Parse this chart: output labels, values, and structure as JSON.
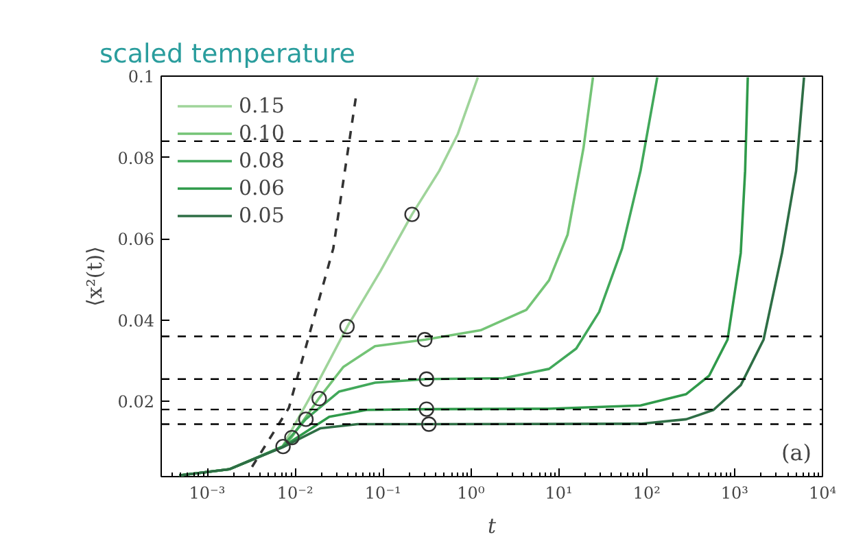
{
  "chart_data": {
    "type": "line",
    "title": "scaled temperature",
    "xlabel": "t",
    "ylabel": "⟨x²(t)⟩",
    "log": "x",
    "legend": "top left",
    "grid": false,
    "line_style": "solid",
    "xlim": [
      0.0003,
      10000
    ],
    "ylim": [
      0.0015,
      0.1
    ],
    "xticks": [
      {
        "value": 0.001,
        "label": "10⁻³"
      },
      {
        "value": 0.01,
        "label": "10⁻²"
      },
      {
        "value": 0.1,
        "label": "10⁻¹"
      },
      {
        "value": 1,
        "label": "10⁰"
      },
      {
        "value": 10,
        "label": "10¹"
      },
      {
        "value": 100,
        "label": "10²"
      },
      {
        "value": 1000,
        "label": "10³"
      },
      {
        "value": 10000,
        "label": "10⁴"
      }
    ],
    "yticks": [
      0.02,
      0.04,
      0.06,
      0.08,
      0.1
    ],
    "series": [
      {
        "name": "0.15",
        "color": "#9fd49a",
        "x": [
          0.00048,
          0.00178,
          0.00363,
          0.0072,
          0.0155,
          0.0398,
          0.0933,
          0.214,
          0.437,
          0.708,
          1.2
        ],
        "values": [
          0.0018,
          0.0033,
          0.0061,
          0.0089,
          0.0218,
          0.0386,
          0.052,
          0.066,
          0.0767,
          0.0857,
          0.0997
        ]
      },
      {
        "name": "0.10",
        "color": "#74c476",
        "x": [
          0.00048,
          0.00178,
          0.00363,
          0.0072,
          0.0091,
          0.0186,
          0.0355,
          0.0813,
          0.302,
          1.29,
          4.27,
          7.76,
          12.6,
          19.1,
          24.5
        ],
        "values": [
          0.0018,
          0.0033,
          0.0061,
          0.0089,
          0.0111,
          0.0207,
          0.0285,
          0.0336,
          0.0352,
          0.0375,
          0.0425,
          0.0498,
          0.061,
          0.0823,
          0.0997
        ]
      },
      {
        "name": "0.08",
        "color": "#41a85a",
        "x": [
          0.00048,
          0.00178,
          0.00363,
          0.0072,
          0.0132,
          0.0316,
          0.0813,
          0.316,
          2.34,
          7.76,
          15.8,
          28.8,
          52.5,
          85.1,
          132
        ],
        "values": [
          0.0018,
          0.0033,
          0.0061,
          0.0089,
          0.0156,
          0.0224,
          0.0246,
          0.0255,
          0.0257,
          0.028,
          0.033,
          0.042,
          0.0576,
          0.0767,
          0.0997
        ]
      },
      {
        "name": "0.06",
        "color": "#2f9a4a",
        "x": [
          0.00048,
          0.00178,
          0.00363,
          0.0072,
          0.0245,
          0.0646,
          0.316,
          7.76,
          85.1,
          282,
          513,
          832,
          1175,
          1318,
          1413
        ],
        "values": [
          0.0018,
          0.0033,
          0.0061,
          0.0088,
          0.0162,
          0.0179,
          0.0181,
          0.0182,
          0.019,
          0.0218,
          0.0263,
          0.0352,
          0.0565,
          0.0767,
          0.0997
        ]
      },
      {
        "name": "0.05",
        "color": "#2e6e45",
        "x": [
          0.00048,
          0.00178,
          0.00363,
          0.0072,
          0.0195,
          0.0513,
          0.331,
          85.1,
          282,
          575,
          1175,
          2138,
          3467,
          5012,
          6166
        ],
        "values": [
          0.0018,
          0.0033,
          0.0061,
          0.0087,
          0.0134,
          0.0144,
          0.0144,
          0.0145,
          0.0156,
          0.0179,
          0.024,
          0.0352,
          0.0565,
          0.0767,
          0.0997
        ]
      },
      {
        "type": "line",
        "line_style": "dashed",
        "color": "#333333",
        "x": [
          0.00324,
          0.0085,
          0.0272,
          0.0495
        ],
        "values": [
          0.0039,
          0.0184,
          0.0576,
          0.0952
        ]
      },
      {
        "type": "scatter",
        "marker": "circle",
        "color": "#333333",
        "x": [
          0.0073,
          0.0092,
          0.0133,
          0.0188,
          0.039,
          0.214,
          0.299,
          0.313,
          0.313,
          0.333
        ],
        "values": [
          0.0089,
          0.0111,
          0.0156,
          0.0207,
          0.0384,
          0.066,
          0.0352,
          0.0255,
          0.0181,
          0.0144
        ]
      }
    ],
    "ref_lines": [
      {
        "axis": "y",
        "value": 0.084,
        "color": "#000000",
        "line_style": "dashed"
      },
      {
        "axis": "y",
        "value": 0.036,
        "color": "#000000",
        "line_style": "dashed"
      },
      {
        "axis": "y",
        "value": 0.0255,
        "color": "#000000",
        "line_style": "dashed"
      },
      {
        "axis": "y",
        "value": 0.018,
        "color": "#000000",
        "line_style": "dashed"
      },
      {
        "axis": "y",
        "value": 0.0144,
        "color": "#000000",
        "line_style": "dashed"
      }
    ],
    "annotations": [
      "(a)"
    ]
  }
}
